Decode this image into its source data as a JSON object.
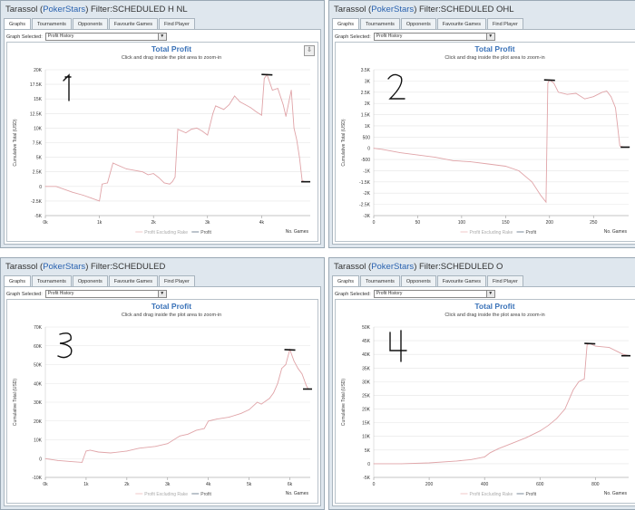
{
  "panels": [
    {
      "title_prefix": "Tarassol (",
      "site": "PokerStars",
      "title_suffix": ") Filter:SCHEDULED H NL",
      "tabs": [
        "Graphs",
        "Tournaments",
        "Opponents",
        "Favourite Games",
        "Find Player"
      ],
      "graph_selected_label": "Graph Selected:",
      "graph_selected_value": "Profit History",
      "annotation": "1"
    },
    {
      "title_prefix": "Tarassol (",
      "site": "PokerStars",
      "title_suffix": ") Filter:SCHEDULED OHL",
      "tabs": [
        "Graphs",
        "Tournaments",
        "Opponents",
        "Favourite Games",
        "Find Player"
      ],
      "graph_selected_label": "Graph Selected:",
      "graph_selected_value": "Profit History",
      "annotation": "2"
    },
    {
      "title_prefix": "Tarassol (",
      "site": "PokerStars",
      "title_suffix": ") Filter:SCHEDULED",
      "tabs": [
        "Graphs",
        "Tournaments",
        "Opponents",
        "Favourite Games",
        "Find Player"
      ],
      "graph_selected_label": "Graph Selected:",
      "graph_selected_value": "Profit History",
      "annotation": "3"
    },
    {
      "title_prefix": "Tarassol (",
      "site": "PokerStars",
      "title_suffix": ") Filter:SCHEDULED O",
      "tabs": [
        "Graphs",
        "Tournaments",
        "Opponents",
        "Favourite Games",
        "Find Player"
      ],
      "graph_selected_label": "Graph Selected:",
      "graph_selected_value": "Profit History",
      "annotation": "4"
    }
  ],
  "colors": {
    "profit_line": "#e0a4a8",
    "excluding_rake": "#f0c8ca",
    "title": "#3a72b8",
    "annotation": "#111111",
    "grid": "#e4e4e4"
  },
  "chart_data": [
    {
      "type": "line",
      "title": "Total Profit",
      "subtitle": "Click and drag inside the plot area to zoom-in",
      "xlabel": "No. Games",
      "ylabel": "Cumulative Total (USD)",
      "xlim": [
        0,
        4900
      ],
      "ylim": [
        -5000,
        20000
      ],
      "xticks": [
        0,
        1000,
        2000,
        3000,
        4000
      ],
      "xtick_labels": [
        "0k",
        "1k",
        "2k",
        "3k",
        "4k"
      ],
      "yticks": [
        -5000,
        -2500,
        0,
        2500,
        5000,
        7500,
        10000,
        12500,
        15000,
        17500,
        20000
      ],
      "ytick_labels": [
        "-5K",
        "-2.5K",
        "0",
        "2.5K",
        "5K",
        "7.5K",
        "10K",
        "12.5K",
        "15K",
        "17.5K",
        "20K"
      ],
      "legend": [
        "Profit Excluding Rake",
        "Profit"
      ],
      "series": [
        {
          "name": "Profit",
          "x": [
            0,
            200,
            500,
            700,
            850,
            1000,
            1050,
            1150,
            1250,
            1500,
            1800,
            1900,
            2000,
            2100,
            2200,
            2300,
            2350,
            2400,
            2450,
            2600,
            2700,
            2800,
            2900,
            3000,
            3100,
            3150,
            3300,
            3400,
            3500,
            3600,
            3700,
            3800,
            3900,
            4000,
            4050,
            4100,
            4200,
            4300,
            4400,
            4450,
            4550,
            4600,
            4650,
            4700,
            4750,
            4800
          ],
          "values": [
            0,
            0,
            -1000,
            -1500,
            -2000,
            -2500,
            400,
            600,
            4000,
            3000,
            2500,
            2000,
            2200,
            1500,
            600,
            400,
            800,
            1600,
            9800,
            9200,
            9800,
            10000,
            9500,
            8800,
            12500,
            13800,
            13200,
            14000,
            15500,
            14500,
            14000,
            13500,
            12800,
            12200,
            18500,
            19200,
            16500,
            16800,
            14000,
            12000,
            16500,
            10000,
            8000,
            5000,
            1000,
            800
          ]
        }
      ]
    },
    {
      "type": "line",
      "title": "Total Profit",
      "subtitle": "Click and drag inside the plot area to zoom-in",
      "xlabel": "No. Games",
      "ylabel": "Cumulative Total (USD)",
      "xlim": [
        0,
        290
      ],
      "ylim": [
        -3000,
        3500
      ],
      "xticks": [
        0,
        50,
        100,
        150,
        200,
        250
      ],
      "xtick_labels": [
        "0",
        "50",
        "100",
        "150",
        "200",
        "250"
      ],
      "yticks": [
        -3000,
        -2500,
        -2000,
        -1500,
        -1000,
        -500,
        0,
        500,
        1000,
        1500,
        2000,
        2500,
        3000,
        3500
      ],
      "ytick_labels": [
        "-3K",
        "-2.5K",
        "-2K",
        "-1.5K",
        "-1K",
        "-500",
        "0",
        "500",
        "1K",
        "1.5K",
        "2K",
        "2.5K",
        "3K",
        "3.5K"
      ],
      "legend": [
        "Profit Excluding Rake",
        "Profit"
      ],
      "series": [
        {
          "name": "Profit",
          "x": [
            0,
            10,
            30,
            50,
            70,
            90,
            110,
            130,
            150,
            165,
            180,
            190,
            196,
            198,
            200,
            205,
            210,
            220,
            230,
            240,
            250,
            260,
            265,
            270,
            275,
            280,
            285
          ],
          "values": [
            0,
            -50,
            -200,
            -300,
            -400,
            -550,
            -600,
            -700,
            -800,
            -1000,
            -1500,
            -2100,
            -2400,
            2900,
            3050,
            2900,
            2500,
            2400,
            2450,
            2200,
            2300,
            2500,
            2550,
            2300,
            1800,
            100,
            50
          ]
        }
      ]
    },
    {
      "type": "line",
      "title": "Total Profit",
      "subtitle": "Click and drag inside the plot area to zoom-in",
      "xlabel": "No. Games",
      "ylabel": "Cumulative Total (USD)",
      "xlim": [
        0,
        6500
      ],
      "ylim": [
        -10000,
        70000
      ],
      "xticks": [
        0,
        1000,
        2000,
        3000,
        4000,
        5000,
        6000
      ],
      "xtick_labels": [
        "0k",
        "1k",
        "2k",
        "3k",
        "4k",
        "5k",
        "6k"
      ],
      "yticks": [
        -10000,
        0,
        10000,
        20000,
        30000,
        40000,
        50000,
        60000,
        70000
      ],
      "ytick_labels": [
        "-10K",
        "0",
        "10K",
        "20K",
        "30K",
        "40K",
        "50K",
        "60K",
        "70K"
      ],
      "legend": [
        "Profit Excluding Rake",
        "Profit"
      ],
      "series": [
        {
          "name": "Profit",
          "x": [
            0,
            300,
            600,
            900,
            1000,
            1100,
            1300,
            1600,
            2000,
            2300,
            2700,
            3000,
            3300,
            3500,
            3700,
            3900,
            4000,
            4200,
            4500,
            4800,
            5000,
            5200,
            5300,
            5500,
            5600,
            5700,
            5800,
            5900,
            6000,
            6100,
            6200,
            6300,
            6350,
            6400,
            6450
          ],
          "values": [
            0,
            -1000,
            -1500,
            -2000,
            4000,
            4500,
            3500,
            3000,
            4000,
            5500,
            6500,
            8000,
            12000,
            13000,
            15000,
            16000,
            20000,
            21000,
            22000,
            24000,
            26000,
            30000,
            29000,
            32000,
            35000,
            40000,
            48000,
            50000,
            58000,
            52000,
            48000,
            45000,
            42000,
            39000,
            37000
          ]
        }
      ]
    },
    {
      "type": "line",
      "title": "Total Profit",
      "subtitle": "Click and drag inside the plot area to zoom-in",
      "xlabel": "No. Games",
      "ylabel": "Cumulative Total (USD)",
      "xlim": [
        0,
        920
      ],
      "ylim": [
        -5000,
        50000
      ],
      "xticks": [
        0,
        200,
        400,
        600,
        800
      ],
      "xtick_labels": [
        "0",
        "200",
        "400",
        "600",
        "800"
      ],
      "yticks": [
        -5000,
        0,
        5000,
        10000,
        15000,
        20000,
        25000,
        30000,
        35000,
        40000,
        45000,
        50000
      ],
      "ytick_labels": [
        "-5K",
        "0",
        "5K",
        "10K",
        "15K",
        "20K",
        "25K",
        "30K",
        "35K",
        "40K",
        "45K",
        "50K"
      ],
      "legend": [
        "Profit Excluding Rake",
        "Profit"
      ],
      "series": [
        {
          "name": "Profit",
          "x": [
            0,
            100,
            200,
            300,
            350,
            400,
            420,
            450,
            500,
            550,
            600,
            630,
            660,
            690,
            720,
            740,
            760,
            770,
            780,
            800,
            850,
            880,
            900,
            920
          ],
          "values": [
            0,
            0,
            300,
            1000,
            1500,
            2500,
            4000,
            5500,
            7500,
            9500,
            12000,
            14000,
            16500,
            20000,
            27000,
            30000,
            31000,
            43500,
            44000,
            43000,
            42500,
            41000,
            40000,
            39500
          ]
        }
      ]
    }
  ]
}
